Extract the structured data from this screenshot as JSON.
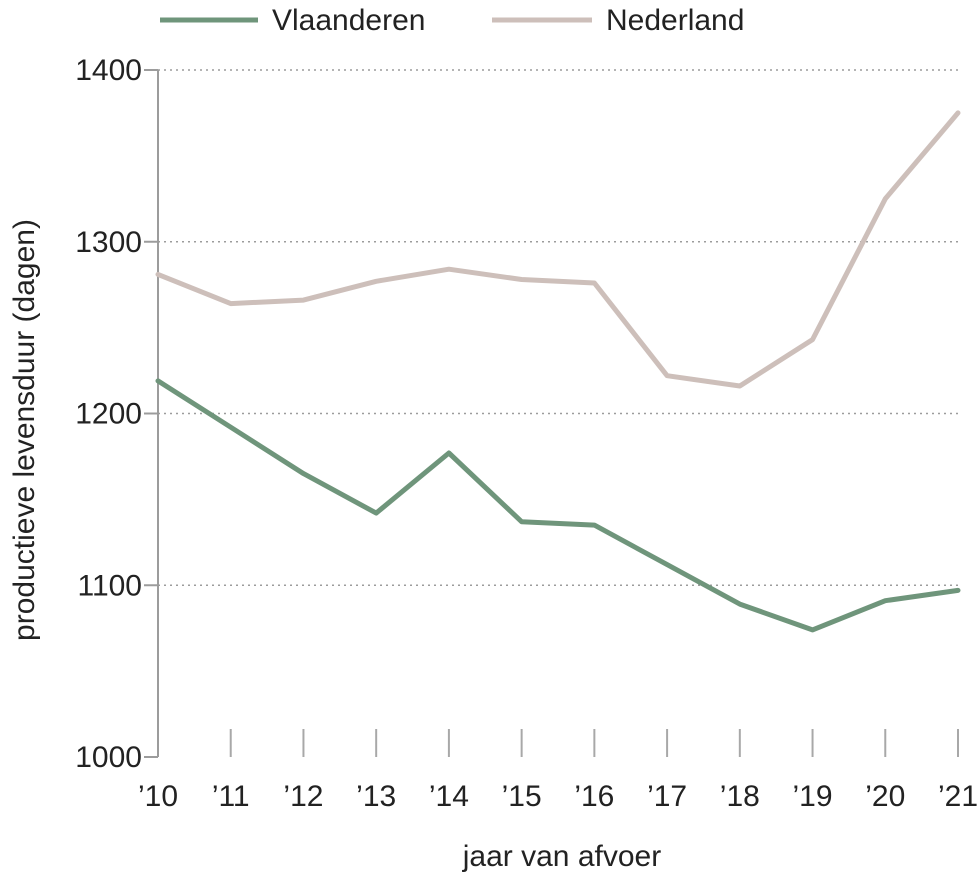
{
  "chart_data": {
    "type": "line",
    "title": "",
    "xlabel": "jaar van afvoer",
    "ylabel": "productieve levensduur (dagen)",
    "categories": [
      "’10",
      "’11",
      "’12",
      "’13",
      "’14",
      "’15",
      "’16",
      "’17",
      "’18",
      "’19",
      "’20",
      "’21"
    ],
    "yticks": [
      "1000",
      "1100",
      "1200",
      "1300",
      "1400"
    ],
    "ylim": [
      1000,
      1400
    ],
    "grid": "horizontal dotted",
    "legend_position": "top",
    "series": [
      {
        "name": "Vlaanderen",
        "color": "#6f957b",
        "values": [
          1219,
          1192,
          1165,
          1142,
          1177,
          1137,
          1135,
          1112,
          1089,
          1074,
          1091,
          1097
        ]
      },
      {
        "name": "Nederland",
        "color": "#cdbfba",
        "values": [
          1281,
          1264,
          1266,
          1277,
          1284,
          1278,
          1276,
          1222,
          1216,
          1243,
          1325,
          1375
        ]
      }
    ]
  }
}
